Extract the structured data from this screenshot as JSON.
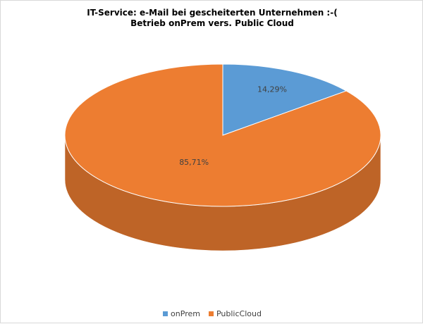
{
  "chart_data": {
    "type": "pie",
    "title": "IT-Service: e-Mail bei gescheiterten Unternehmen :-(",
    "subtitle": "Betrieb onPrem vers. Public Cloud",
    "slices": [
      {
        "name": "onPrem",
        "value": 14.29,
        "label": "14,29%",
        "color": "#5b9bd5"
      },
      {
        "name": "PublicCloud",
        "value": 85.71,
        "label": "85,71%",
        "color": "#ed7d31"
      }
    ],
    "legend_position": "bottom",
    "style": "3d"
  }
}
